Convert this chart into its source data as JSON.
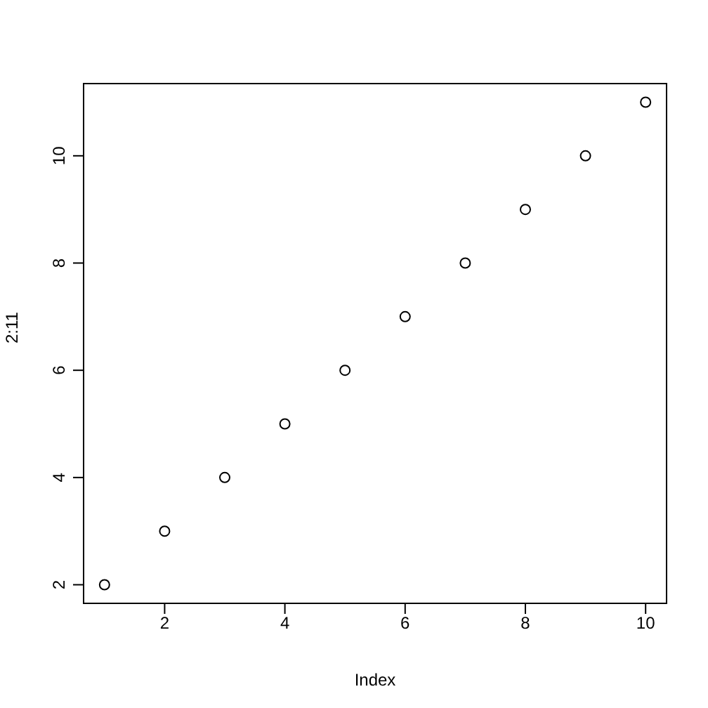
{
  "chart_data": {
    "type": "scatter",
    "xlabel": "Index",
    "ylabel": "2:11",
    "x": [
      1,
      2,
      3,
      4,
      5,
      6,
      7,
      8,
      9,
      10
    ],
    "values": [
      2,
      3,
      4,
      5,
      6,
      7,
      8,
      9,
      10,
      11
    ],
    "color": "#000000",
    "marker": "circle",
    "xlim": [
      0.64,
      10.36
    ],
    "ylim": [
      1.64,
      11.36
    ],
    "xticks": [
      2,
      4,
      6,
      8,
      10
    ],
    "yticks": [
      2,
      4,
      6,
      8,
      10
    ]
  }
}
